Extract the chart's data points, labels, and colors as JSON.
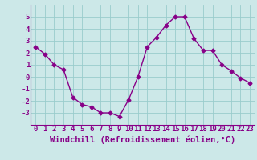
{
  "x": [
    0,
    1,
    2,
    3,
    4,
    5,
    6,
    7,
    8,
    9,
    10,
    11,
    12,
    13,
    14,
    15,
    16,
    17,
    18,
    19,
    20,
    21,
    22,
    23
  ],
  "y": [
    2.5,
    1.9,
    1.0,
    0.6,
    -1.7,
    -2.3,
    -2.5,
    -3.0,
    -3.0,
    -3.3,
    -1.9,
    0.0,
    2.5,
    3.3,
    4.3,
    5.0,
    5.0,
    3.2,
    2.2,
    2.2,
    1.0,
    0.5,
    -0.1,
    -0.5
  ],
  "line_color": "#880088",
  "marker": "D",
  "markersize": 2.5,
  "linewidth": 1.0,
  "bg_color": "#cce8e8",
  "grid_color": "#99cccc",
  "xlabel": "Windchill (Refroidissement éolien,°C)",
  "xlabel_fontsize": 7.5,
  "tick_fontsize": 6.5,
  "ylim": [
    -4,
    6
  ],
  "yticks": [
    -3,
    -2,
    -1,
    0,
    1,
    2,
    3,
    4,
    5
  ],
  "xticks": [
    0,
    1,
    2,
    3,
    4,
    5,
    6,
    7,
    8,
    9,
    10,
    11,
    12,
    13,
    14,
    15,
    16,
    17,
    18,
    19,
    20,
    21,
    22,
    23
  ]
}
